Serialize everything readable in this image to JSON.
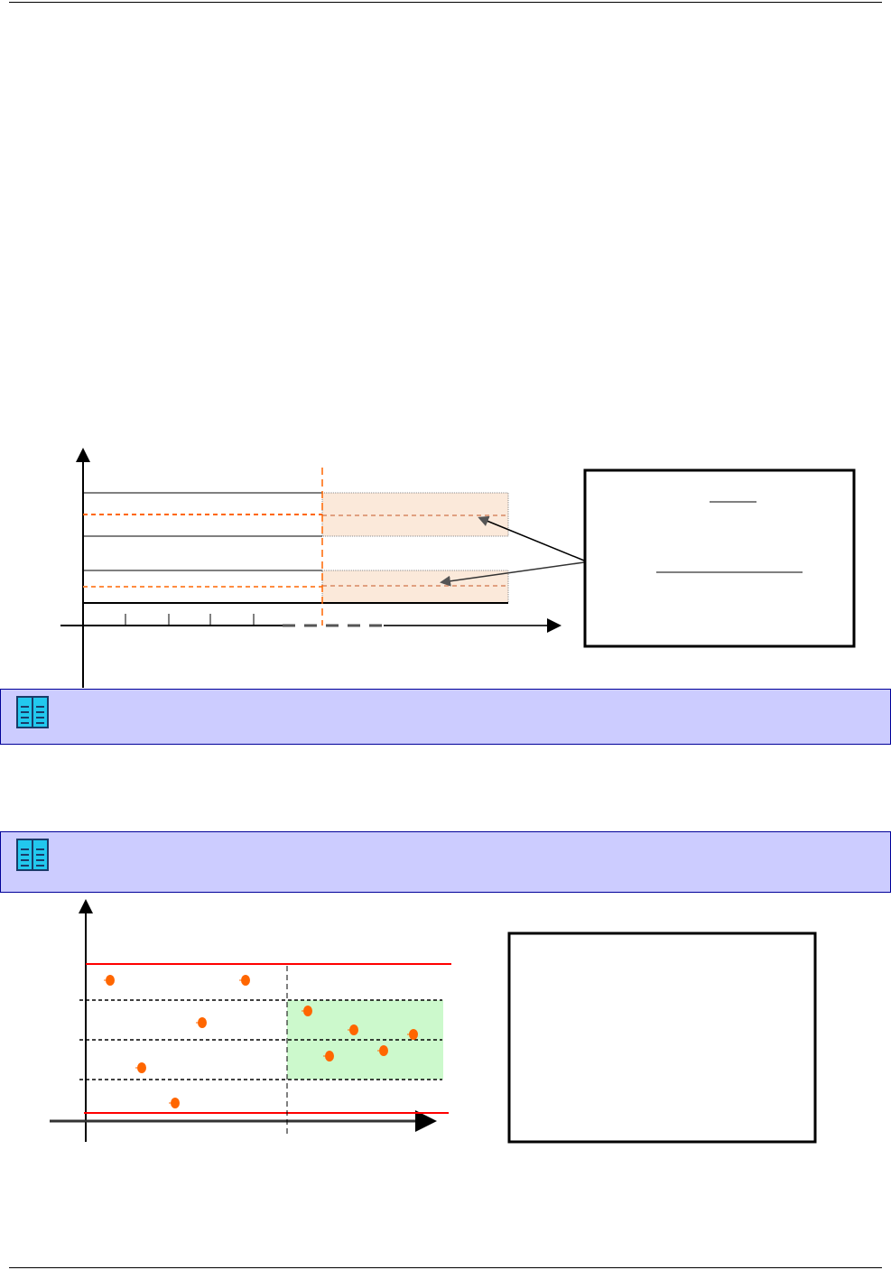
{
  "colors": {
    "note_background": "#ccccff",
    "note_border": "#000099",
    "accent_orange": "#ff6600",
    "shaded_band": "#fbe9da",
    "highlight_zone": "#ccf9cc",
    "limit_line": "#ff0000"
  },
  "notes": [
    {
      "icon": "book-icon"
    },
    {
      "icon": "book-icon"
    }
  ]
}
